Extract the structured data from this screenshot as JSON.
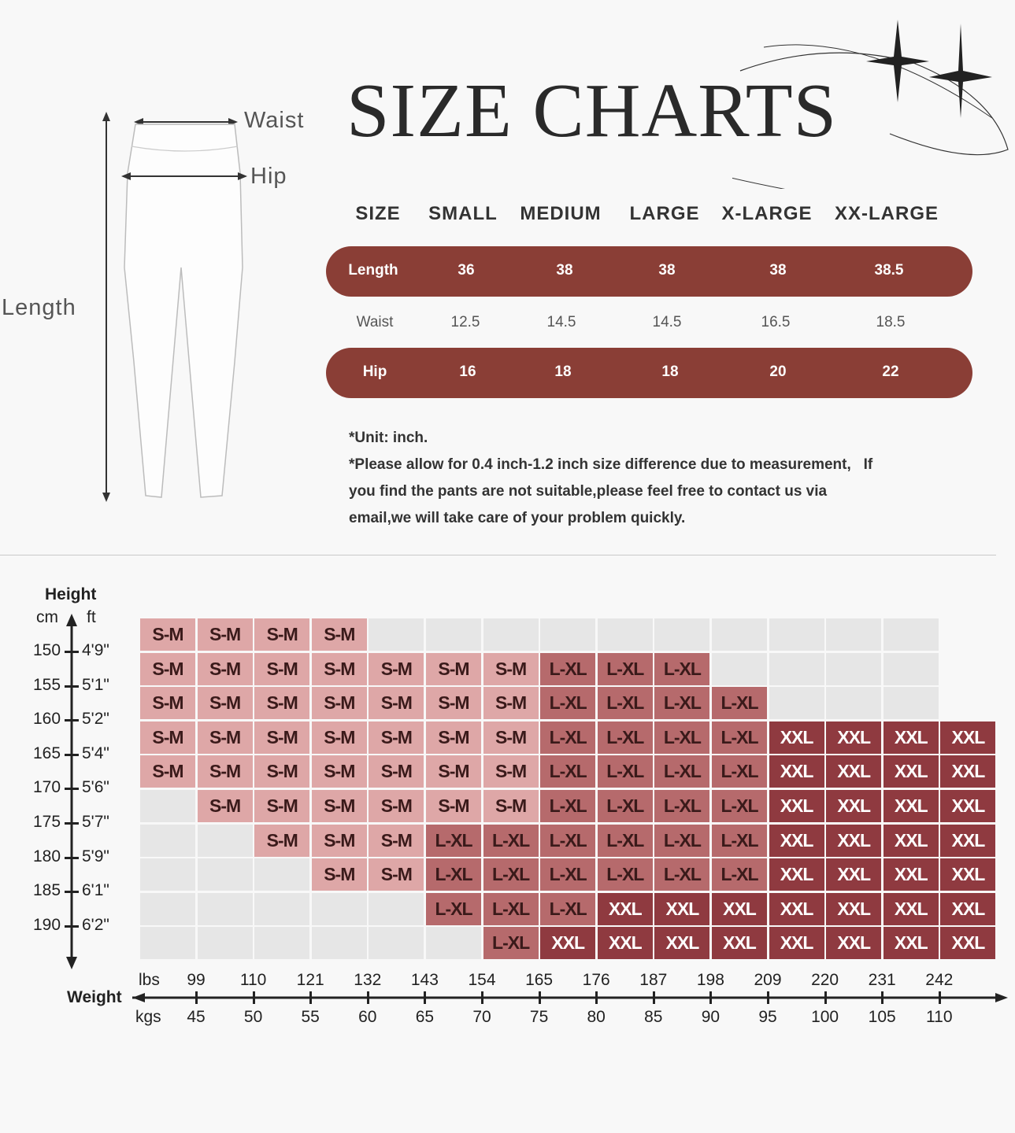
{
  "title": "SIZE CHARTS",
  "diagram": {
    "waist": "Waist",
    "hip": "Hip",
    "length": "Length"
  },
  "table": {
    "headers": [
      "SIZE",
      "SMALL",
      "MEDIUM",
      "LARGE",
      "X-LARGE",
      "XX-LARGE"
    ],
    "rows": [
      {
        "label": "Length",
        "values": [
          "36",
          "38",
          "38",
          "38",
          "38.5"
        ]
      },
      {
        "label": "Waist",
        "values": [
          "12.5",
          "14.5",
          "14.5",
          "16.5",
          "18.5"
        ]
      },
      {
        "label": "Hip",
        "values": [
          "16",
          "18",
          "18",
          "20",
          "22"
        ]
      }
    ]
  },
  "notes": {
    "unit": "*Unit: inch.",
    "line1": "*Please allow for 0.4 inch-1.2 inch size difference due to measurement,   If",
    "line2": "you find the pants are not suitable,please feel free to contact us via",
    "line3": "email,we will take care of your problem quickly."
  },
  "grid": {
    "height_label": "Height",
    "cm_label": "cm",
    "ft_label": "ft",
    "weight_label": "Weight",
    "lbs_label": "lbs",
    "kgs_label": "kgs",
    "cm_ticks": [
      "150",
      "155",
      "160",
      "165",
      "170",
      "175",
      "180",
      "185",
      "190"
    ],
    "ft_ticks": [
      "4'9\"",
      "5'1\"",
      "5'2\"",
      "5'4\"",
      "5'6\"",
      "5'7\"",
      "5'9\"",
      "6'1\"",
      "6'2\""
    ],
    "lbs_ticks": [
      "99",
      "110",
      "121",
      "132",
      "143",
      "154",
      "165",
      "176",
      "187",
      "198",
      "209",
      "220",
      "231",
      "242"
    ],
    "kgs_ticks": [
      "45",
      "50",
      "55",
      "60",
      "65",
      "70",
      "75",
      "80",
      "85",
      "90",
      "95",
      "100",
      "105",
      "110"
    ],
    "colors": {
      "S-M": "#dea7a7",
      "L-XL": "#b66a6c",
      "XXL": "#8f3a40",
      "empty": "#e6e6e6"
    },
    "rows": [
      [
        "S-M",
        "S-M",
        "S-M",
        "S-M",
        "",
        "",
        "",
        "",
        "",
        "",
        "",
        "",
        "",
        ""
      ],
      [
        "S-M",
        "S-M",
        "S-M",
        "S-M",
        "S-M",
        "S-M",
        "S-M",
        "L-XL",
        "L-XL",
        "L-XL",
        "",
        "",
        "",
        ""
      ],
      [
        "S-M",
        "S-M",
        "S-M",
        "S-M",
        "S-M",
        "S-M",
        "S-M",
        "L-XL",
        "L-XL",
        "L-XL",
        "L-XL",
        "",
        "",
        ""
      ],
      [
        "S-M",
        "S-M",
        "S-M",
        "S-M",
        "S-M",
        "S-M",
        "S-M",
        "L-XL",
        "L-XL",
        "L-XL",
        "L-XL",
        "XXL",
        "XXL",
        "XXL",
        "XXL"
      ],
      [
        "S-M",
        "S-M",
        "S-M",
        "S-M",
        "S-M",
        "S-M",
        "S-M",
        "L-XL",
        "L-XL",
        "L-XL",
        "L-XL",
        "XXL",
        "XXL",
        "XXL",
        "XXL"
      ],
      [
        "",
        "S-M",
        "S-M",
        "S-M",
        "S-M",
        "S-M",
        "S-M",
        "L-XL",
        "L-XL",
        "L-XL",
        "L-XL",
        "XXL",
        "XXL",
        "XXL",
        "XXL"
      ],
      [
        "",
        "",
        "S-M",
        "S-M",
        "S-M",
        "L-XL",
        "L-XL",
        "L-XL",
        "L-XL",
        "L-XL",
        "L-XL",
        "XXL",
        "XXL",
        "XXL",
        "XXL"
      ],
      [
        "",
        "",
        "",
        "S-M",
        "S-M",
        "L-XL",
        "L-XL",
        "L-XL",
        "L-XL",
        "L-XL",
        "L-XL",
        "XXL",
        "XXL",
        "XXL",
        "XXL"
      ],
      [
        "",
        "",
        "",
        "",
        "",
        "L-XL",
        "L-XL",
        "L-XL",
        "XXL",
        "XXL",
        "XXL",
        "XXL",
        "XXL",
        "XXL",
        "XXL"
      ],
      [
        "",
        "",
        "",
        "",
        "",
        "",
        "L-XL",
        "XXL",
        "XXL",
        "XXL",
        "XXL",
        "XXL",
        "XXL",
        "XXL",
        "XXL"
      ]
    ]
  }
}
